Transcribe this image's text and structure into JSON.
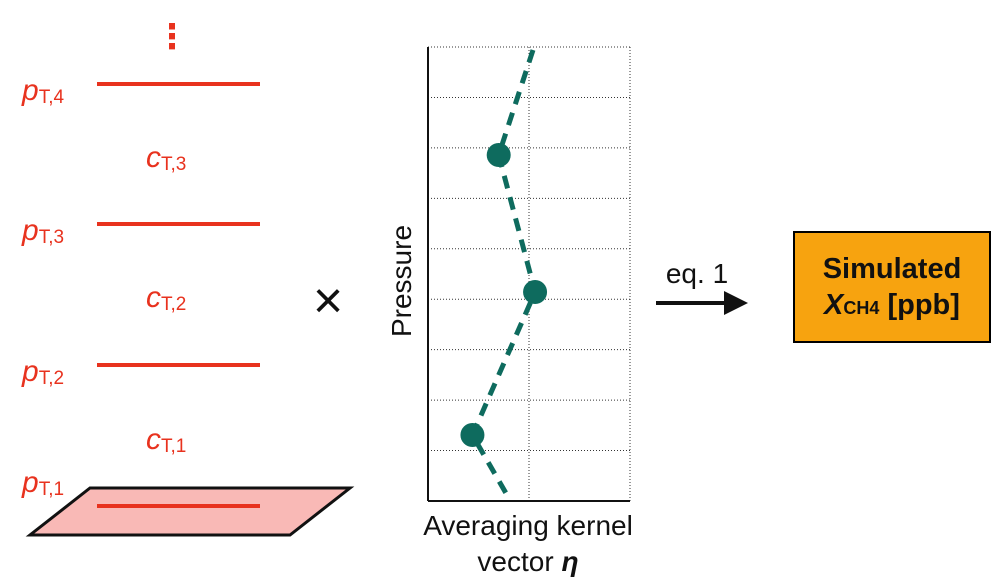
{
  "layers": {
    "levels": [
      {
        "base": "p",
        "sub": "T,4"
      },
      {
        "base": "p",
        "sub": "T,3"
      },
      {
        "base": "p",
        "sub": "T,2"
      },
      {
        "base": "p",
        "sub": "T,1"
      }
    ],
    "concentrations": [
      {
        "base": "c",
        "sub": "T,3"
      },
      {
        "base": "c",
        "sub": "T,2"
      },
      {
        "base": "c",
        "sub": "T,1"
      }
    ],
    "ellipsis": "⋮"
  },
  "operator": "×",
  "plot": {
    "ylabel": "Pressure",
    "xlabel_line1": "Averaging kernel",
    "xlabel_line2_text": "vector ",
    "xlabel_line2_symbol": "η",
    "rows": 9,
    "point_fractions": [
      0.35,
      0.53,
      0.22
    ],
    "line_fractions": [
      0.52,
      0.28,
      0.35,
      0.53,
      0.22,
      0.1
    ]
  },
  "arrow": {
    "label": "eq. 1"
  },
  "output": {
    "line1": "Simulated",
    "symbol": "X",
    "symbol_sub": "CH4",
    "unit": "[ppb]"
  },
  "colors": {
    "red": "#e8321e",
    "teal": "#0e6b5e",
    "surface_fill": "#f9b9b6",
    "box_fill": "#f7a30f"
  }
}
